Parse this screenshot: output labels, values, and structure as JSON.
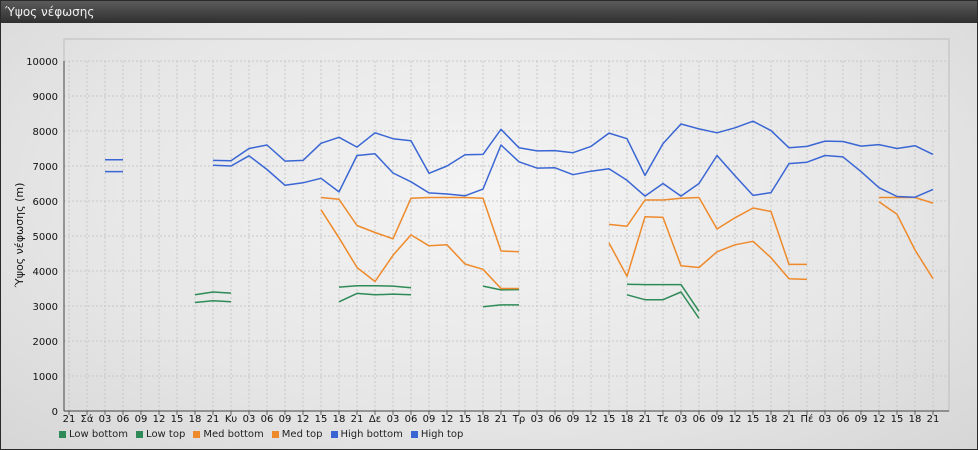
{
  "window": {
    "title": "Ύψος νέφωσης"
  },
  "chart_data": {
    "type": "line",
    "ylabel": "Ύψος νέφωσης (m)",
    "ylim": [
      0,
      10000
    ],
    "yticks": [
      0,
      1000,
      2000,
      3000,
      4000,
      5000,
      6000,
      7000,
      8000,
      9000,
      10000
    ],
    "grid": true,
    "legend_position": "bottom-left",
    "categories": [
      "21",
      "Σά",
      "03",
      "06",
      "09",
      "12",
      "15",
      "18",
      "21",
      "Κυ",
      "03",
      "06",
      "09",
      "12",
      "15",
      "18",
      "21",
      "Δε",
      "03",
      "06",
      "09",
      "12",
      "15",
      "18",
      "21",
      "Τρ",
      "03",
      "06",
      "09",
      "12",
      "15",
      "18",
      "21",
      "Τε",
      "03",
      "06",
      "09",
      "12",
      "15",
      "18",
      "21",
      "Πέ",
      "03",
      "06",
      "09",
      "12",
      "15",
      "18",
      "21"
    ],
    "series": [
      {
        "name": "Low bottom",
        "color": "#2e8b57",
        "values": [
          null,
          null,
          null,
          null,
          null,
          null,
          null,
          3100,
          3150,
          3120,
          null,
          null,
          null,
          null,
          null,
          3120,
          3360,
          3320,
          3340,
          3320,
          null,
          null,
          null,
          2980,
          3030,
          3030,
          null,
          null,
          null,
          null,
          null,
          3320,
          3180,
          3180,
          3400,
          2650,
          null,
          null,
          null,
          null,
          null,
          null,
          null,
          null,
          null,
          null,
          null,
          null,
          null
        ]
      },
      {
        "name": "Low top",
        "color": "#2e8b57",
        "values": [
          null,
          null,
          null,
          null,
          null,
          null,
          null,
          3320,
          3400,
          3370,
          null,
          null,
          null,
          null,
          null,
          3540,
          3580,
          3580,
          3570,
          3520,
          null,
          null,
          null,
          3570,
          3460,
          3470,
          null,
          null,
          null,
          null,
          null,
          3620,
          3610,
          3610,
          3610,
          2850,
          null,
          null,
          null,
          null,
          null,
          null,
          null,
          null,
          null,
          null,
          null,
          null,
          null
        ]
      },
      {
        "name": "Med bottom",
        "color": "#ee8a2b",
        "values": [
          null,
          null,
          null,
          null,
          null,
          null,
          null,
          null,
          null,
          null,
          null,
          null,
          null,
          null,
          5750,
          4950,
          4100,
          3700,
          4450,
          5030,
          4720,
          4750,
          4200,
          4050,
          3500,
          3500,
          null,
          null,
          null,
          null,
          4800,
          3850,
          5550,
          5530,
          4150,
          4100,
          4550,
          4750,
          4850,
          4380,
          3780,
          3760,
          null,
          null,
          null,
          5980,
          5620,
          4600,
          3780
        ]
      },
      {
        "name": "Med top",
        "color": "#ee8a2b",
        "values": [
          null,
          null,
          null,
          null,
          null,
          null,
          null,
          null,
          null,
          null,
          null,
          null,
          null,
          null,
          6100,
          6050,
          5300,
          5100,
          4920,
          6080,
          6100,
          6100,
          6100,
          6080,
          4570,
          4550,
          null,
          null,
          null,
          null,
          5330,
          5280,
          6030,
          6030,
          6080,
          6100,
          5200,
          5520,
          5800,
          5700,
          4190,
          4190,
          null,
          null,
          null,
          6100,
          6100,
          6100,
          5940
        ]
      },
      {
        "name": "High bottom",
        "color": "#3a66d4",
        "values": [
          null,
          null,
          6840,
          6840,
          null,
          null,
          null,
          null,
          7020,
          7000,
          7290,
          6900,
          6450,
          6520,
          6650,
          6260,
          7300,
          7350,
          6800,
          6550,
          6230,
          6200,
          6150,
          6340,
          7600,
          7120,
          6940,
          6950,
          6750,
          6850,
          6920,
          6590,
          6140,
          6500,
          6140,
          6500,
          7300,
          6720,
          6160,
          6240,
          7070,
          7110,
          7300,
          7260,
          6840,
          6380,
          6130,
          6110,
          6330
        ]
      },
      {
        "name": "High top",
        "color": "#3a66d4",
        "values": [
          null,
          null,
          7180,
          7180,
          null,
          null,
          null,
          null,
          7160,
          7150,
          7500,
          7600,
          7140,
          7160,
          7650,
          7820,
          7540,
          7950,
          7780,
          7720,
          6790,
          7000,
          7320,
          7330,
          8050,
          7520,
          7430,
          7440,
          7380,
          7560,
          7940,
          7780,
          6730,
          7640,
          8200,
          8060,
          7950,
          8090,
          8280,
          8010,
          7520,
          7560,
          7710,
          7700,
          7570,
          7610,
          7500,
          7580,
          7330
        ]
      }
    ]
  }
}
